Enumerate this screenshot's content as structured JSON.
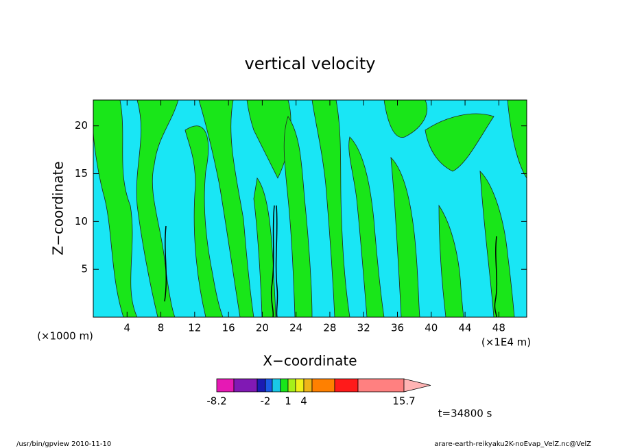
{
  "chart_data": {
    "type": "contour",
    "title": "vertical velocity",
    "x_label": "X−coordinate",
    "y_label": "Z−coordinate",
    "x_unit": "(×1000 m)",
    "x_scale_note": "(×1E4 m)",
    "time_label": "t=34800 s",
    "xlim": [
      0,
      51.3
    ],
    "ylim": [
      0,
      22.7
    ],
    "xticks": [
      4,
      8,
      12,
      16,
      20,
      24,
      28,
      32,
      36,
      40,
      44,
      48
    ],
    "yticks": [
      5,
      10,
      15,
      20
    ],
    "colorbar": {
      "colors": [
        "#e619b4",
        "#8019b4",
        "#1a1ab3",
        "#1a5ae6",
        "#19c8e6",
        "#19e619",
        "#a6f019",
        "#f0f019",
        "#f0b419",
        "#ff8000",
        "#ff1a1a",
        "#ff8080",
        "#ffb4b4"
      ],
      "levels": [
        -8.2,
        null,
        null,
        -2,
        null,
        null,
        1,
        null,
        4,
        null,
        null,
        null,
        15.7
      ]
    },
    "footer_left": "/usr/bin/gpview   2010-11-10",
    "footer_right": "arare-earth-reikyaku2K-noEvap_VelZ.nc@VelZ"
  }
}
